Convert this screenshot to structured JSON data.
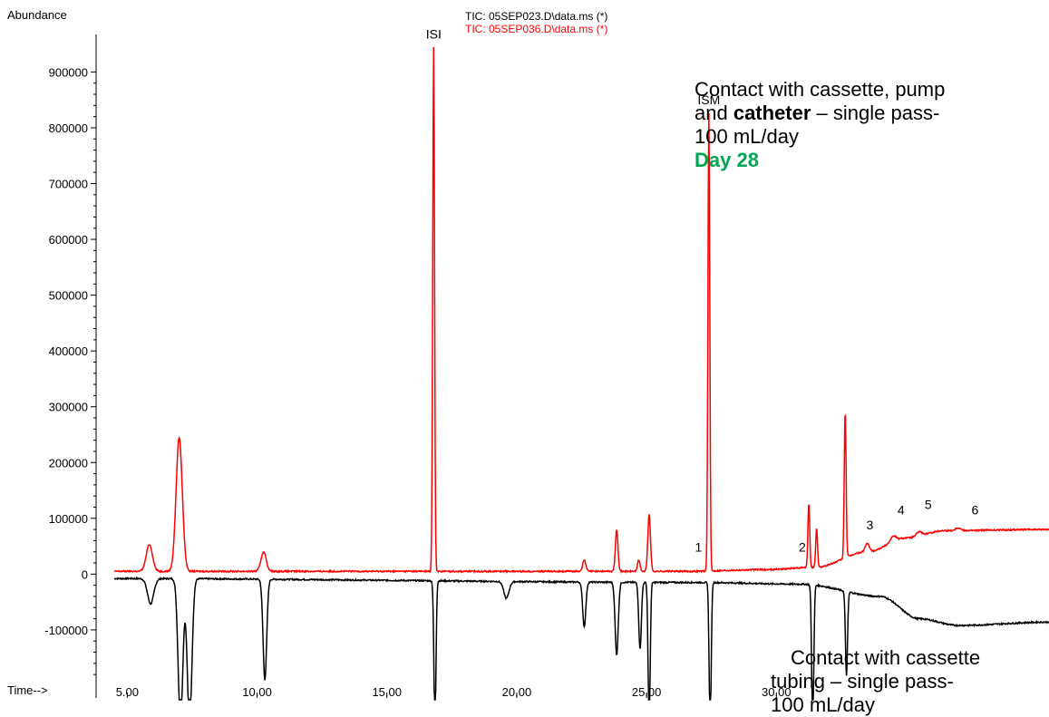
{
  "chart_data": {
    "type": "line",
    "ylabel": "Abundance",
    "xlabel": "Time-->",
    "xlim": [
      3.8,
      40.5
    ],
    "ylim": [
      -222000,
      990000
    ],
    "yticks": [
      -100000,
      0,
      100000,
      200000,
      300000,
      400000,
      500000,
      600000,
      700000,
      800000,
      900000
    ],
    "ytick_labels": [
      "-100000",
      "0",
      "100000",
      "200000",
      "300000",
      "400000",
      "500000",
      "600000",
      "700000",
      "800000",
      "900000"
    ],
    "xticks": [
      5,
      10,
      15,
      20,
      25,
      30
    ],
    "xtick_labels": [
      "5.00",
      "10.00",
      "15.00",
      "20.00",
      "25.00",
      "30.00"
    ],
    "grid": false,
    "legend_placement": "top-center",
    "series": [
      {
        "name": "TIC: 05SEP023.D\\data.ms (*)",
        "color": "#000000",
        "baseline": [
          [
            4.5,
            -8000
          ],
          [
            27.0,
            -15000
          ],
          [
            31.0,
            -18000
          ],
          [
            34.0,
            -40000
          ],
          [
            35.5,
            -80000
          ],
          [
            37.0,
            -92000
          ],
          [
            40.5,
            -86000
          ]
        ],
        "peaks": [
          [
            5.9,
            -45000,
            0.12
          ],
          [
            7.05,
            -260000,
            0.09
          ],
          [
            7.4,
            -260000,
            0.09
          ],
          [
            10.3,
            -180000,
            0.07
          ],
          [
            16.85,
            -260000,
            0.04
          ],
          [
            19.6,
            -30000,
            0.1
          ],
          [
            22.6,
            -80000,
            0.06
          ],
          [
            23.85,
            -130000,
            0.06
          ],
          [
            24.75,
            -120000,
            0.05
          ],
          [
            25.1,
            -260000,
            0.04
          ],
          [
            27.45,
            -260000,
            0.04
          ],
          [
            31.4,
            -260000,
            0.04
          ],
          [
            32.7,
            -150000,
            0.04
          ]
        ]
      },
      {
        "name": "TIC: 05SEP036.D\\data.ms (*)",
        "color": "#ff0000",
        "baseline": [
          [
            4.5,
            5000
          ],
          [
            26.5,
            5000
          ],
          [
            29.5,
            8000
          ],
          [
            31.5,
            12000
          ],
          [
            33.5,
            40000
          ],
          [
            35.0,
            65000
          ],
          [
            36.5,
            78000
          ],
          [
            40.5,
            80000
          ]
        ],
        "peaks": [
          [
            5.85,
            48000,
            0.12
          ],
          [
            7.0,
            240000,
            0.12
          ],
          [
            10.25,
            35000,
            0.1
          ],
          [
            16.8,
            940000,
            0.035
          ],
          [
            22.6,
            20000,
            0.06
          ],
          [
            23.85,
            75000,
            0.05
          ],
          [
            24.7,
            20000,
            0.05
          ],
          [
            25.1,
            102000,
            0.05
          ],
          [
            27.4,
            820000,
            0.035
          ],
          [
            31.25,
            115000,
            0.035
          ],
          [
            31.55,
            70000,
            0.035
          ],
          [
            32.65,
            265000,
            0.035
          ],
          [
            33.5,
            15000,
            0.08
          ],
          [
            34.5,
            10000,
            0.1
          ],
          [
            35.5,
            8000,
            0.1
          ],
          [
            37.0,
            5000,
            0.1
          ]
        ]
      }
    ],
    "peak_labels": [
      {
        "text": "ISI",
        "x": 16.8,
        "y": 960000
      },
      {
        "text": "ISM",
        "x": 27.4,
        "y": 842000
      },
      {
        "text": "1",
        "x": 27.0,
        "y": 40000
      },
      {
        "text": "2",
        "x": 31.0,
        "y": 40000
      },
      {
        "text": "3",
        "x": 33.6,
        "y": 80000
      },
      {
        "text": "4",
        "x": 34.8,
        "y": 107000
      },
      {
        "text": "5",
        "x": 35.85,
        "y": 117000
      },
      {
        "text": "6",
        "x": 37.65,
        "y": 107000
      }
    ]
  },
  "annotations": {
    "top": {
      "line1": "Contact with cassette, pump",
      "line2_bold": "catheter",
      "line2_pre": "and ",
      "line2_post": " – single pass-",
      "line3": "100 mL/day",
      "day": "Day 28"
    },
    "bottom": {
      "line1": "Contact with cassette",
      "line2": "tubing – single pass-",
      "line3": "100 mL/day"
    }
  }
}
